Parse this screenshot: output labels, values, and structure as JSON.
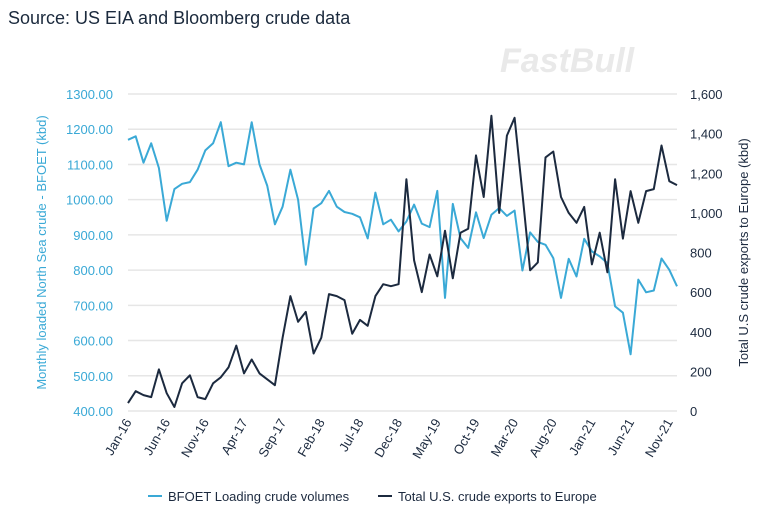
{
  "title": "Source: US EIA and Bloomberg crude data",
  "watermark": "FastBull",
  "chart_data": {
    "type": "line",
    "grid": true,
    "legend_position": "bottom",
    "ylabel_left": "Monthly loaded North Sea crude - BFOET (kbd)",
    "ylabel_right": "Total U.S crude exports to Europe (kbd)",
    "ylim_left": [
      400,
      1300
    ],
    "ylim_right": [
      0,
      1600
    ],
    "yticks_left": [
      "400.00",
      "500.00",
      "600.00",
      "700.00",
      "800.00",
      "900.00",
      "1000.00",
      "1100.00",
      "1200.00",
      "1300.00"
    ],
    "yticks_right": [
      "0",
      "200",
      "400",
      "600",
      "800",
      "1,000",
      "1,200",
      "1,400",
      "1,600"
    ],
    "xtick_labels": [
      "Jan-16",
      "Jun-16",
      "Nov-16",
      "Apr-17",
      "Sep-17",
      "Feb-18",
      "Jul-18",
      "Dec-18",
      "May-19",
      "Oct-19",
      "Mar-20",
      "Aug-20",
      "Jan-21",
      "Jun-21",
      "Nov-21"
    ],
    "x_start": "Jan-16",
    "series": [
      {
        "name": "BFOET Loading crude volumes",
        "axis": "left",
        "color": "#3aa9d6",
        "values": [
          1170,
          1180,
          1105,
          1160,
          1090,
          940,
          1030,
          1045,
          1050,
          1085,
          1140,
          1160,
          1220,
          1095,
          1105,
          1100,
          1220,
          1100,
          1040,
          930,
          980,
          1085,
          1000,
          815,
          975,
          990,
          1025,
          980,
          965,
          960,
          950,
          890,
          1020,
          930,
          943,
          910,
          938,
          986,
          932,
          922,
          1025,
          721,
          988,
          891,
          863,
          964,
          891,
          957,
          976,
          954,
          969,
          799,
          907,
          880,
          872,
          834,
          721,
          832,
          782,
          889,
          853,
          839,
          820,
          697,
          679,
          561,
          773,
          737,
          742,
          833,
          801,
          754
        ]
      },
      {
        "name": "Total U.S. crude exports to Europe",
        "axis": "right",
        "color": "#1c2a3f",
        "values": [
          40,
          100,
          80,
          70,
          210,
          90,
          20,
          140,
          180,
          70,
          60,
          140,
          170,
          220,
          330,
          190,
          260,
          190,
          160,
          130,
          370,
          580,
          450,
          500,
          290,
          370,
          590,
          580,
          560,
          390,
          460,
          430,
          580,
          640,
          630,
          640,
          1170,
          760,
          600,
          790,
          680,
          910,
          670,
          900,
          920,
          1290,
          1080,
          1490,
          1000,
          1390,
          1480,
          1100,
          710,
          750,
          1280,
          1310,
          1080,
          1000,
          950,
          1030,
          740,
          900,
          700,
          1170,
          870,
          1110,
          950,
          1110,
          1120,
          1340,
          1160,
          1140
        ]
      }
    ]
  }
}
